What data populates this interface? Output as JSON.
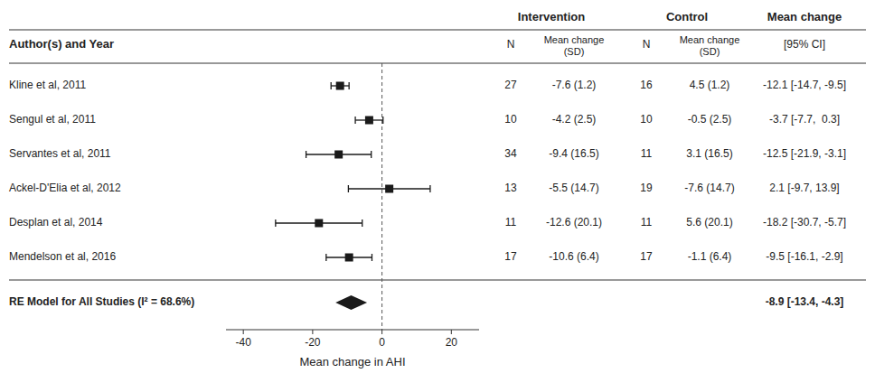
{
  "chart_data": {
    "type": "forest",
    "x_label": "Mean change in AHI",
    "xlim": [
      -45,
      28
    ],
    "xticks": [
      -40,
      -20,
      0,
      20
    ],
    "grid": false,
    "color": "#1a1a1a",
    "reference_line": 0,
    "headers": {
      "author": "Author(s) and Year",
      "intervention": "Intervention",
      "control": "Control",
      "mean_change": "Mean change",
      "n": "N",
      "mean_sd": "Mean change\n(SD)",
      "ci": "[95% CI]"
    },
    "studies": [
      {
        "label": "Kline et al, 2011",
        "value": -12.1,
        "ci_low": -14.7,
        "ci_high": -9.5,
        "int_n": 27,
        "int_mean": -7.6,
        "int_sd": 1.2,
        "ctrl_n": 16,
        "ctrl_mean": 4.5,
        "ctrl_sd": 1.2,
        "ci_text": "-12.1 [-14.7, -9.5]"
      },
      {
        "label": "Sengul et al, 2011",
        "value": -3.7,
        "ci_low": -7.7,
        "ci_high": 0.3,
        "int_n": 10,
        "int_mean": -4.2,
        "int_sd": 2.5,
        "ctrl_n": 10,
        "ctrl_mean": -0.5,
        "ctrl_sd": 2.5,
        "ci_text": "-3.7 [-7.7,  0.3]"
      },
      {
        "label": "Servantes et al, 2011",
        "value": -12.5,
        "ci_low": -21.9,
        "ci_high": -3.1,
        "int_n": 34,
        "int_mean": -9.4,
        "int_sd": 16.5,
        "ctrl_n": 11,
        "ctrl_mean": 3.1,
        "ctrl_sd": 16.5,
        "ci_text": "-12.5 [-21.9, -3.1]"
      },
      {
        "label": "Ackel-D'Elia et al, 2012",
        "value": 2.1,
        "ci_low": -9.7,
        "ci_high": 13.9,
        "int_n": 13,
        "int_mean": -5.5,
        "int_sd": 14.7,
        "ctrl_n": 19,
        "ctrl_mean": -7.6,
        "ctrl_sd": 14.7,
        "ci_text": "2.1 [-9.7, 13.9]"
      },
      {
        "label": "Desplan et al, 2014",
        "value": -18.2,
        "ci_low": -30.7,
        "ci_high": -5.7,
        "int_n": 11,
        "int_mean": -12.6,
        "int_sd": 20.1,
        "ctrl_n": 11,
        "ctrl_mean": 5.6,
        "ctrl_sd": 20.1,
        "ci_text": "-18.2 [-30.7, -5.7]"
      },
      {
        "label": "Mendelson et al, 2016",
        "value": -9.5,
        "ci_low": -16.1,
        "ci_high": -2.9,
        "int_n": 17,
        "int_mean": -10.6,
        "int_sd": 6.4,
        "ctrl_n": 17,
        "ctrl_mean": -1.1,
        "ctrl_sd": 6.4,
        "ci_text": "-9.5 [-16.1, -2.9]"
      }
    ],
    "summary": {
      "label": "RE Model for All Studies (I² = 68.6%)",
      "value": -8.9,
      "ci_low": -13.4,
      "ci_high": -4.3,
      "ci_text": "-8.9 [-13.4, -4.3]"
    }
  }
}
